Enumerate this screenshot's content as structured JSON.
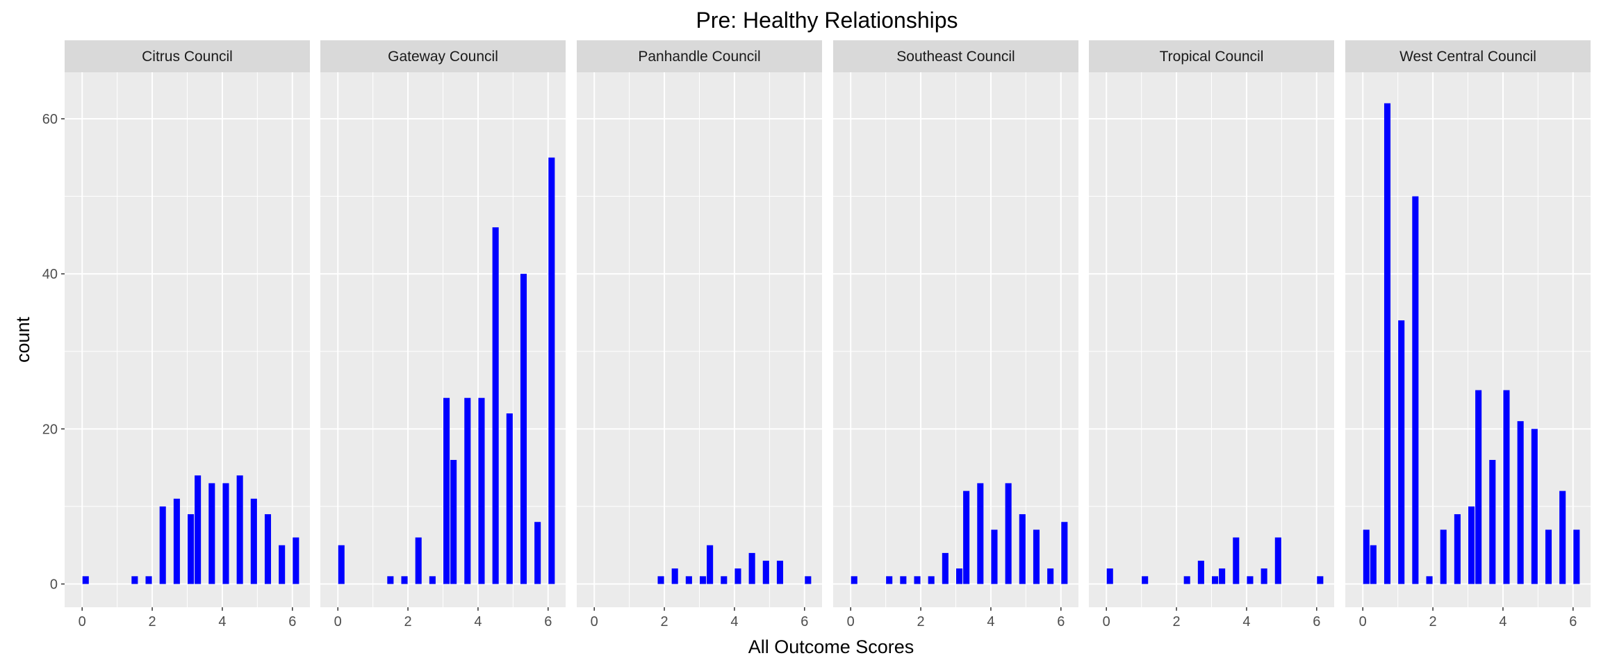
{
  "chart_data": {
    "type": "bar",
    "title": "Pre: Healthy Relationships",
    "xlabel": "All Outcome Scores",
    "ylabel": "count",
    "xlim": [
      -0.5,
      6.5
    ],
    "ylim": [
      -3,
      66
    ],
    "x_ticks": [
      0,
      2,
      4,
      6
    ],
    "y_ticks": [
      0,
      20,
      40,
      60
    ],
    "bar_color": "#0000ff",
    "panel_background": "#ebebeb",
    "strip_background": "#d9d9d9",
    "grid_color": "#ffffff",
    "panels": [
      {
        "name": "Citrus Council",
        "bars": [
          {
            "x": 0.1,
            "count": 1
          },
          {
            "x": 1.5,
            "count": 1
          },
          {
            "x": 1.9,
            "count": 1
          },
          {
            "x": 2.3,
            "count": 10
          },
          {
            "x": 2.7,
            "count": 11
          },
          {
            "x": 3.1,
            "count": 9
          },
          {
            "x": 3.3,
            "count": 14
          },
          {
            "x": 3.7,
            "count": 13
          },
          {
            "x": 4.1,
            "count": 13
          },
          {
            "x": 4.5,
            "count": 14
          },
          {
            "x": 4.9,
            "count": 11
          },
          {
            "x": 5.3,
            "count": 9
          },
          {
            "x": 5.7,
            "count": 5
          },
          {
            "x": 6.1,
            "count": 6
          }
        ]
      },
      {
        "name": "Gateway Council",
        "bars": [
          {
            "x": 0.1,
            "count": 5
          },
          {
            "x": 1.5,
            "count": 1
          },
          {
            "x": 1.9,
            "count": 1
          },
          {
            "x": 2.3,
            "count": 6
          },
          {
            "x": 2.7,
            "count": 1
          },
          {
            "x": 3.1,
            "count": 24
          },
          {
            "x": 3.3,
            "count": 16
          },
          {
            "x": 3.7,
            "count": 24
          },
          {
            "x": 4.1,
            "count": 24
          },
          {
            "x": 4.5,
            "count": 46
          },
          {
            "x": 4.9,
            "count": 22
          },
          {
            "x": 5.3,
            "count": 40
          },
          {
            "x": 5.7,
            "count": 8
          },
          {
            "x": 6.1,
            "count": 55
          }
        ]
      },
      {
        "name": "Panhandle Council",
        "bars": [
          {
            "x": 1.9,
            "count": 1
          },
          {
            "x": 2.3,
            "count": 2
          },
          {
            "x": 2.7,
            "count": 1
          },
          {
            "x": 3.1,
            "count": 1
          },
          {
            "x": 3.3,
            "count": 5
          },
          {
            "x": 3.7,
            "count": 1
          },
          {
            "x": 4.1,
            "count": 2
          },
          {
            "x": 4.5,
            "count": 4
          },
          {
            "x": 4.9,
            "count": 3
          },
          {
            "x": 5.3,
            "count": 3
          },
          {
            "x": 6.1,
            "count": 1
          }
        ]
      },
      {
        "name": "Southeast Council",
        "bars": [
          {
            "x": 0.1,
            "count": 1
          },
          {
            "x": 1.1,
            "count": 1
          },
          {
            "x": 1.5,
            "count": 1
          },
          {
            "x": 1.9,
            "count": 1
          },
          {
            "x": 2.3,
            "count": 1
          },
          {
            "x": 2.7,
            "count": 4
          },
          {
            "x": 3.1,
            "count": 2
          },
          {
            "x": 3.3,
            "count": 12
          },
          {
            "x": 3.7,
            "count": 13
          },
          {
            "x": 4.1,
            "count": 7
          },
          {
            "x": 4.5,
            "count": 13
          },
          {
            "x": 4.9,
            "count": 9
          },
          {
            "x": 5.3,
            "count": 7
          },
          {
            "x": 5.7,
            "count": 2
          },
          {
            "x": 6.1,
            "count": 8
          }
        ]
      },
      {
        "name": "Tropical Council",
        "bars": [
          {
            "x": 0.1,
            "count": 2
          },
          {
            "x": 1.1,
            "count": 1
          },
          {
            "x": 2.3,
            "count": 1
          },
          {
            "x": 2.7,
            "count": 3
          },
          {
            "x": 3.1,
            "count": 1
          },
          {
            "x": 3.3,
            "count": 2
          },
          {
            "x": 3.7,
            "count": 6
          },
          {
            "x": 4.1,
            "count": 1
          },
          {
            "x": 4.5,
            "count": 2
          },
          {
            "x": 4.9,
            "count": 6
          },
          {
            "x": 6.1,
            "count": 1
          }
        ]
      },
      {
        "name": "West Central Council",
        "bars": [
          {
            "x": 0.1,
            "count": 7
          },
          {
            "x": 0.3,
            "count": 5
          },
          {
            "x": 0.7,
            "count": 62
          },
          {
            "x": 1.1,
            "count": 34
          },
          {
            "x": 1.5,
            "count": 50
          },
          {
            "x": 1.9,
            "count": 1
          },
          {
            "x": 2.3,
            "count": 7
          },
          {
            "x": 2.7,
            "count": 9
          },
          {
            "x": 3.1,
            "count": 10
          },
          {
            "x": 3.3,
            "count": 25
          },
          {
            "x": 3.7,
            "count": 16
          },
          {
            "x": 4.1,
            "count": 25
          },
          {
            "x": 4.5,
            "count": 21
          },
          {
            "x": 4.9,
            "count": 20
          },
          {
            "x": 5.3,
            "count": 7
          },
          {
            "x": 5.7,
            "count": 12
          },
          {
            "x": 6.1,
            "count": 7
          }
        ]
      }
    ]
  }
}
